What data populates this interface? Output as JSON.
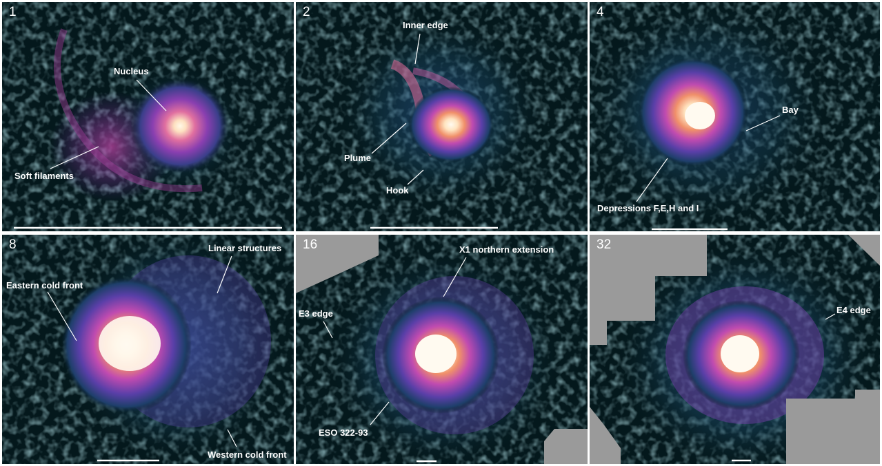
{
  "panels": [
    {
      "number": "1",
      "labels": [
        "Nucleus",
        "Soft filaments"
      ]
    },
    {
      "number": "2",
      "labels": [
        "Inner edge",
        "Plume",
        "Hook"
      ]
    },
    {
      "number": "4",
      "labels": [
        "Bay",
        "Depressions F,E,H and I"
      ]
    },
    {
      "number": "8",
      "labels": [
        "Linear structures",
        "Eastern cold front",
        "Western cold front"
      ]
    },
    {
      "number": "16",
      "labels": [
        "X1 northern extension",
        "E3 edge",
        "ESO 322-93"
      ]
    },
    {
      "number": "32",
      "labels": [
        "E4 edge"
      ]
    }
  ],
  "colors": {
    "background": "#04181c",
    "dark_teal": "#0e3a42",
    "blue": "#2f5fa0",
    "purple": "#7a3fb0",
    "magenta": "#c04bb0",
    "orange": "#f3a070",
    "core": "#fff8e8",
    "mask": "#9a9a9a",
    "annotation": "#ffffff"
  }
}
